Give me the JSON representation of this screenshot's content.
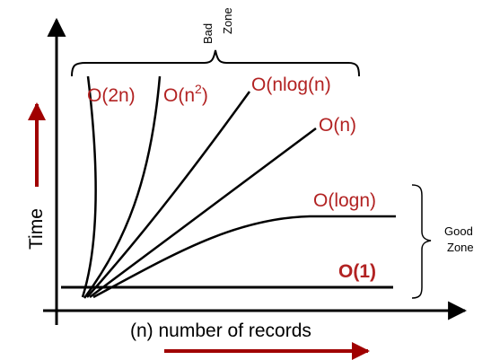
{
  "axes": {
    "x_label": "(n) number of records",
    "y_label": "Time"
  },
  "zones": {
    "bad": {
      "line1": "Bad",
      "line2": "Zone"
    },
    "good": {
      "line1": "Good",
      "line2": "Zone"
    }
  },
  "curves": {
    "o_2n": "O(2n)",
    "o_n2_base": "O(n",
    "o_n2_exp": "2",
    "o_n2_close": ")",
    "o_nlogn": "O(nlog(n)",
    "o_n": "O(n)",
    "o_logn": "O(logn)",
    "o_1": "O(1)"
  },
  "colors": {
    "label_red": "#b22222",
    "arrow_red": "#a00000",
    "line": "#000000"
  }
}
